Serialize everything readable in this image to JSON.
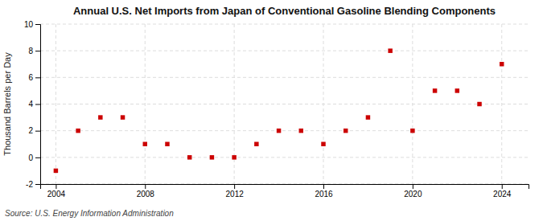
{
  "chart_data": {
    "type": "scatter",
    "title": "Annual U.S. Net Imports from Japan of Conventional Gasoline Blending Components",
    "ylabel": "Thousand Barrels per Day",
    "source": "Source: U.S. Energy Information Administration",
    "x": [
      2004,
      2005,
      2006,
      2007,
      2008,
      2009,
      2010,
      2011,
      2012,
      2013,
      2014,
      2015,
      2016,
      2017,
      2018,
      2019,
      2020,
      2021,
      2022,
      2023,
      2024
    ],
    "values": [
      -1,
      2,
      3,
      3,
      1,
      1,
      0,
      0,
      0,
      1,
      2,
      2,
      1,
      2,
      3,
      8,
      2,
      5,
      5,
      4,
      7
    ],
    "color": "#CC0000",
    "marker": "square",
    "xlim": [
      2003.3,
      2025.2
    ],
    "xticks": [
      2004,
      2008,
      2012,
      2016,
      2020,
      2024
    ],
    "ylim": [
      -2,
      10
    ],
    "yticks": [
      -2,
      0,
      2,
      4,
      6,
      8,
      10
    ],
    "grid": true
  }
}
